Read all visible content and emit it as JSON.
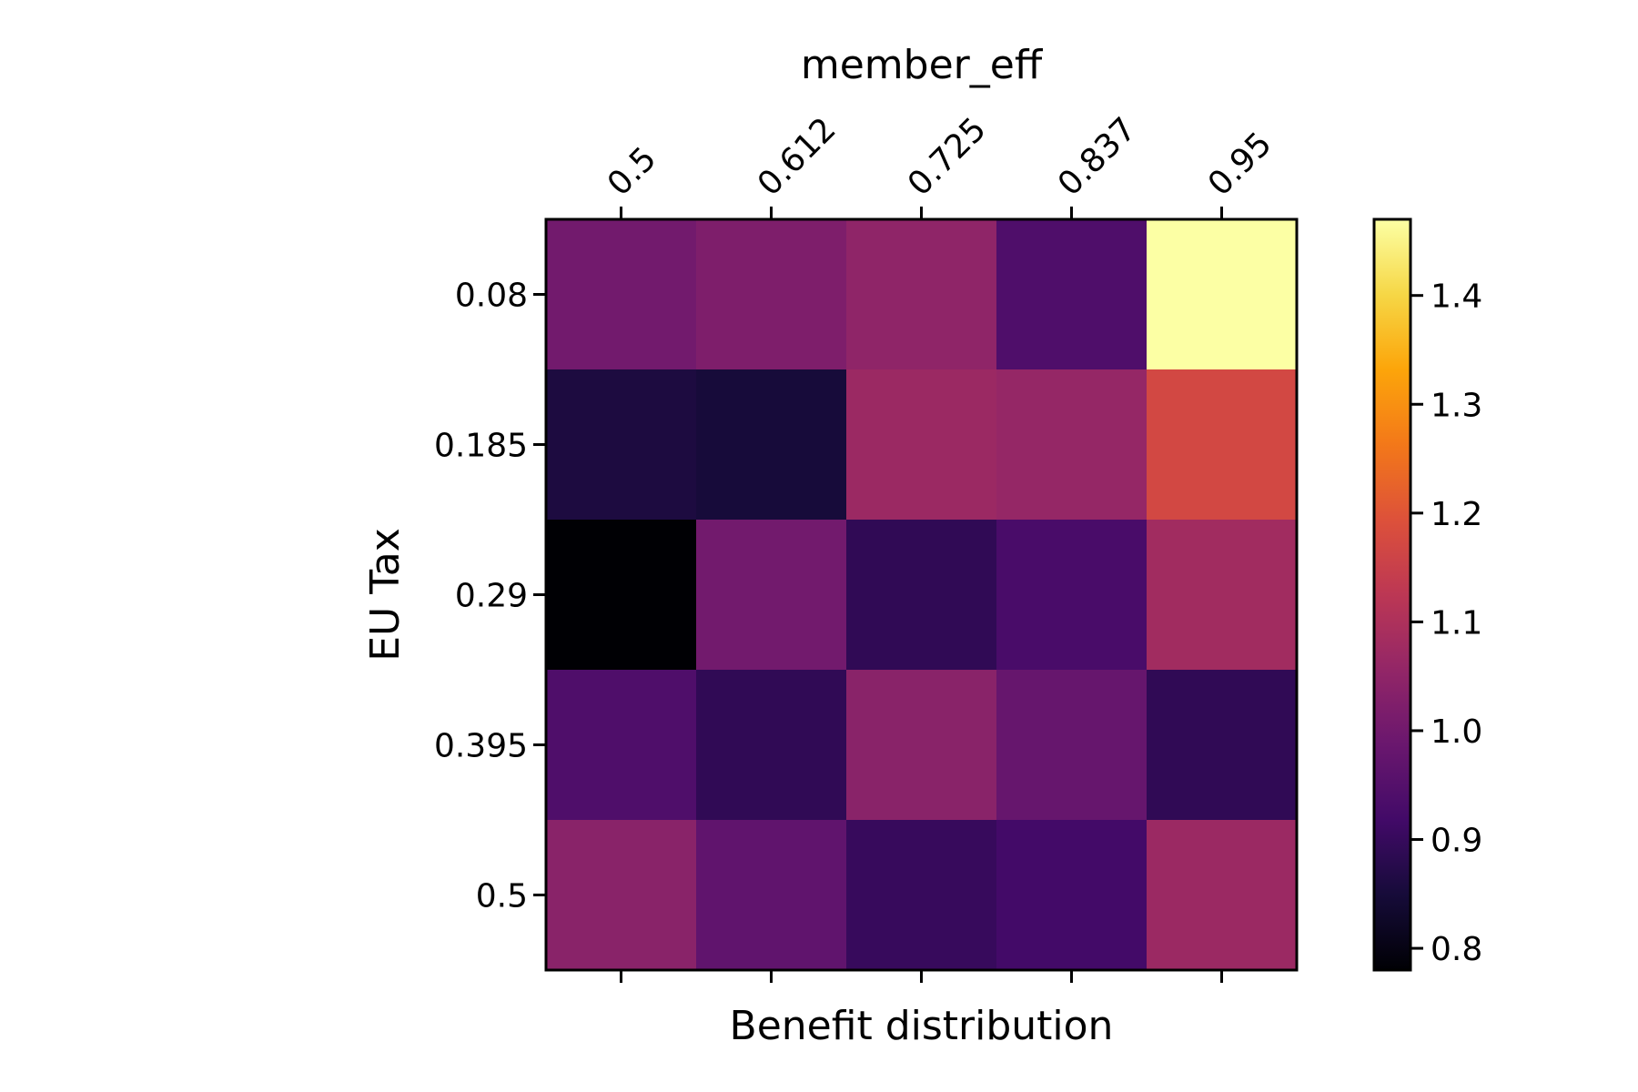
{
  "chart_data": {
    "type": "heatmap",
    "title": "",
    "top_axis_label": "member_eff",
    "xlabel": "Benefit distribution",
    "ylabel": "EU Tax",
    "x_categories": [
      "0.5",
      "0.612",
      "0.725",
      "0.837",
      "0.95"
    ],
    "y_categories": [
      "0.08",
      "0.185",
      "0.29",
      "0.395",
      "0.5"
    ],
    "values": [
      [
        1.0,
        1.02,
        1.05,
        0.94,
        1.47
      ],
      [
        0.86,
        0.85,
        1.07,
        1.06,
        1.17
      ],
      [
        0.78,
        1.0,
        0.89,
        0.93,
        1.08
      ],
      [
        0.94,
        0.89,
        1.04,
        0.98,
        0.89
      ],
      [
        1.04,
        0.97,
        0.9,
        0.92,
        1.07
      ]
    ],
    "colormap": "inferno",
    "colorbar": {
      "range": [
        0.78,
        1.47
      ],
      "ticks": [
        "0.8",
        "0.9",
        "1.0",
        "1.1",
        "1.2",
        "1.3",
        "1.4"
      ]
    },
    "grid": false,
    "legend": "none"
  }
}
